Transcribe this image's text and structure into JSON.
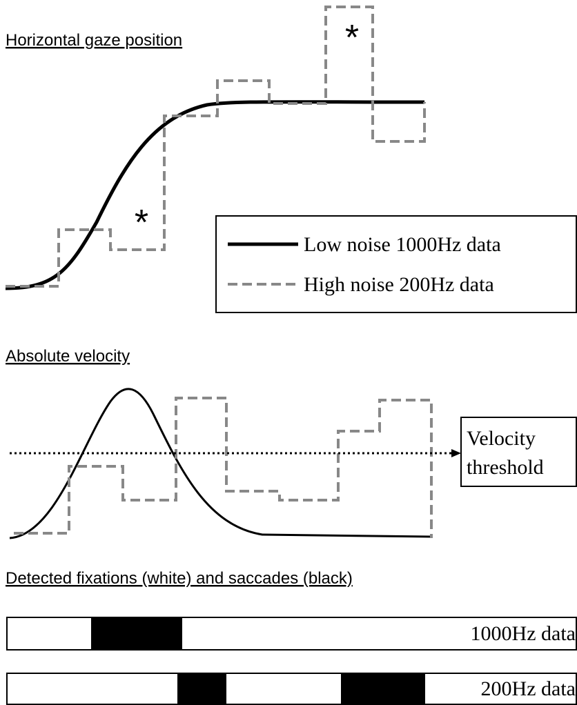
{
  "panels": [
    {
      "title": "Horizontal gaze position"
    },
    {
      "title": "Absolute velocity"
    },
    {
      "title": "Detected fixations (white) and saccades (black)"
    }
  ],
  "annotations": [
    "*",
    "*"
  ],
  "legend": [
    "Low noise 1000Hz data",
    "High noise 200Hz data"
  ],
  "threshold_label": [
    "Velocity",
    "threshold"
  ],
  "bars": [
    "1000Hz data",
    "200Hz data"
  ]
}
